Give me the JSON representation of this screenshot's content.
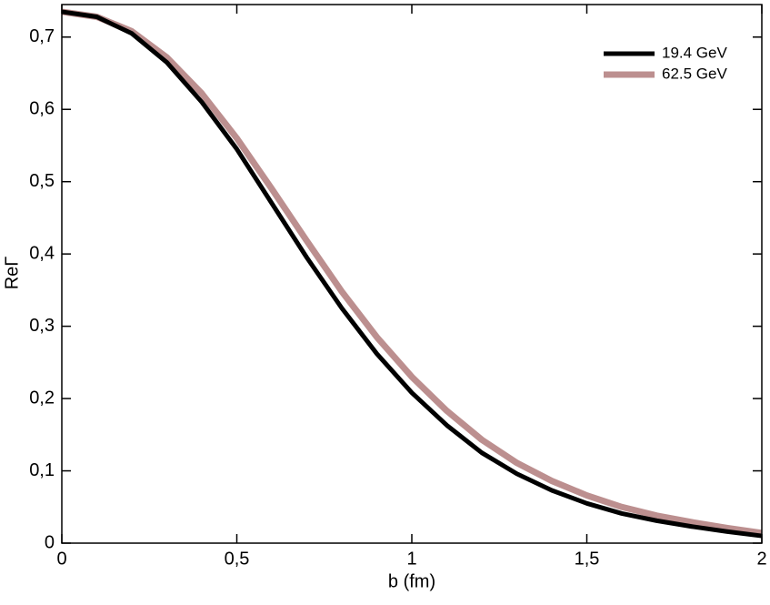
{
  "chart_data": {
    "type": "line",
    "x_label": "b (fm)",
    "y_label": "ReΓ",
    "x": [
      0,
      0.1,
      0.2,
      0.3,
      0.4,
      0.5,
      0.6,
      0.7,
      0.8,
      0.9,
      1.0,
      1.1,
      1.2,
      1.3,
      1.4,
      1.5,
      1.6,
      1.7,
      1.8,
      1.9,
      2.0
    ],
    "series": [
      {
        "name": "19.4 GeV",
        "color": "#000000",
        "width": 5,
        "values": [
          0.735,
          0.728,
          0.705,
          0.665,
          0.61,
          0.545,
          0.47,
          0.395,
          0.325,
          0.262,
          0.208,
          0.163,
          0.125,
          0.096,
          0.073,
          0.055,
          0.041,
          0.031,
          0.023,
          0.016,
          0.01
        ]
      },
      {
        "name": "62.5 GeV",
        "color": "#bc8f8f",
        "width": 7,
        "values": [
          0.735,
          0.728,
          0.708,
          0.672,
          0.622,
          0.56,
          0.49,
          0.418,
          0.348,
          0.285,
          0.23,
          0.183,
          0.143,
          0.111,
          0.086,
          0.066,
          0.05,
          0.038,
          0.029,
          0.021,
          0.014
        ]
      }
    ],
    "xlim": [
      0,
      2
    ],
    "ylim": [
      0,
      0.745
    ],
    "xticks": [
      0,
      {
        "value": 0.5,
        "label": "0,5"
      },
      1,
      {
        "value": 1.5,
        "label": "1,5"
      },
      2
    ],
    "yticks": [
      0,
      {
        "value": 0.1,
        "label": "0,1"
      },
      {
        "value": 0.2,
        "label": "0,2"
      },
      {
        "value": 0.3,
        "label": "0,3"
      },
      {
        "value": 0.4,
        "label": "0,4"
      },
      {
        "value": 0.5,
        "label": "0,5"
      },
      {
        "value": 0.6,
        "label": "0,6"
      },
      {
        "value": 0.7,
        "label": "0,7"
      }
    ],
    "legend": "upper right"
  }
}
